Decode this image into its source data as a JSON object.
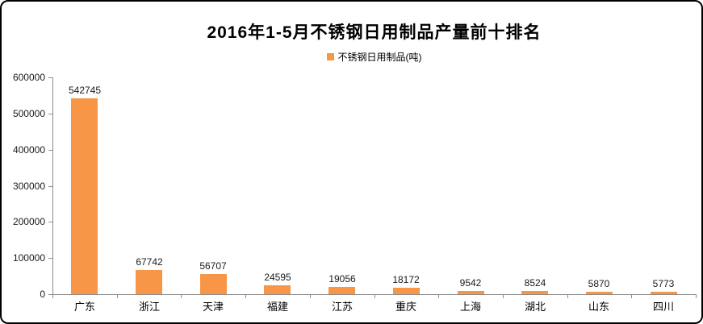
{
  "chart_data": {
    "type": "bar",
    "title": "2016年1-5月不锈钢日用制品产量前十排名",
    "legend": [
      "不锈钢日用制品(吨)"
    ],
    "categories": [
      "广东",
      "浙江",
      "天津",
      "福建",
      "江苏",
      "重庆",
      "上海",
      "湖北",
      "山东",
      "四川"
    ],
    "values": [
      542745,
      67742,
      56707,
      24595,
      19056,
      18172,
      9542,
      8524,
      5870,
      5773
    ],
    "value_labels": [
      "542745",
      "67742",
      "56707",
      "24595",
      "19056",
      "18172",
      "9542",
      "8524",
      "5870",
      "5773"
    ],
    "xlabel": "",
    "ylabel": "",
    "ylim": [
      0,
      600000
    ],
    "ytick_interval": 100000,
    "ytick_labels": [
      "0",
      "100000",
      "200000",
      "300000",
      "400000",
      "500000",
      "600000"
    ],
    "grid": false,
    "legend_position": "top-center",
    "colors": {
      "bar": "#F79646",
      "axis": "#8c8c8c",
      "text": "#1a1a1a",
      "title": "#000000",
      "background": "#ffffff",
      "frame_border": "#000000"
    }
  }
}
